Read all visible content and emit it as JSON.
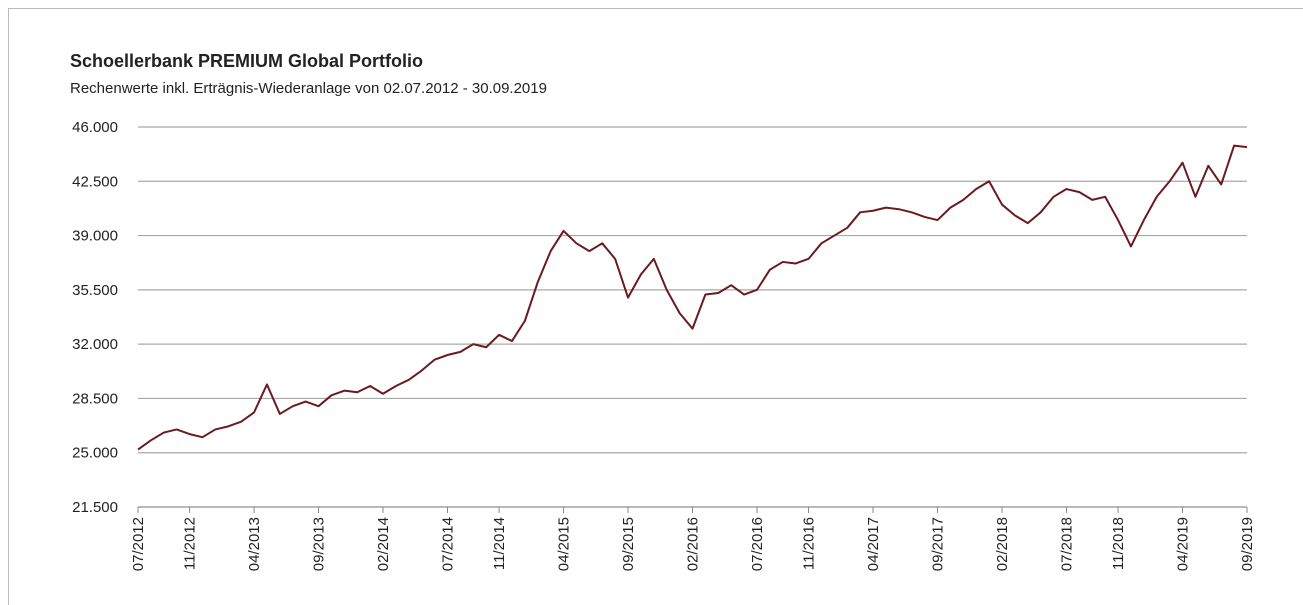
{
  "chart_data": {
    "type": "line",
    "title": "Schoellerbank PREMIUM Global Portfolio",
    "subtitle": "Rechenwerte inkl. Erträgnis-Wiederanlage von  02.07.2012 - 30.09.2019",
    "x": [
      "07/2012",
      "08/2012",
      "09/2012",
      "10/2012",
      "11/2012",
      "12/2012",
      "01/2013",
      "02/2013",
      "03/2013",
      "04/2013",
      "05/2013",
      "06/2013",
      "07/2013",
      "08/2013",
      "09/2013",
      "10/2013",
      "11/2013",
      "12/2013",
      "01/2014",
      "02/2014",
      "03/2014",
      "04/2014",
      "05/2014",
      "06/2014",
      "07/2014",
      "08/2014",
      "09/2014",
      "10/2014",
      "11/2014",
      "12/2014",
      "01/2015",
      "02/2015",
      "03/2015",
      "04/2015",
      "05/2015",
      "06/2015",
      "07/2015",
      "08/2015",
      "09/2015",
      "10/2015",
      "11/2015",
      "12/2015",
      "01/2016",
      "02/2016",
      "03/2016",
      "04/2016",
      "05/2016",
      "06/2016",
      "07/2016",
      "08/2016",
      "09/2016",
      "10/2016",
      "11/2016",
      "12/2016",
      "01/2017",
      "02/2017",
      "03/2017",
      "04/2017",
      "05/2017",
      "06/2017",
      "07/2017",
      "08/2017",
      "09/2017",
      "10/2017",
      "11/2017",
      "12/2017",
      "01/2018",
      "02/2018",
      "03/2018",
      "04/2018",
      "05/2018",
      "06/2018",
      "07/2018",
      "08/2018",
      "09/2018",
      "10/2018",
      "11/2018",
      "12/2018",
      "01/2019",
      "02/2019",
      "03/2019",
      "04/2019",
      "05/2019",
      "06/2019",
      "07/2019",
      "08/2019",
      "09/2019"
    ],
    "series": [
      {
        "name": "Schoellerbank PREMIUM Global Portfolio",
        "color": "#6b1a1f",
        "values": [
          25200,
          25800,
          26300,
          26500,
          26200,
          26000,
          26500,
          26700,
          27000,
          27600,
          29400,
          27500,
          28000,
          28300,
          28000,
          28700,
          29000,
          28900,
          29300,
          28800,
          29300,
          29700,
          30300,
          31000,
          31300,
          31500,
          32000,
          31800,
          32600,
          32200,
          33500,
          36000,
          38000,
          39300,
          38500,
          38000,
          38500,
          37500,
          35000,
          36500,
          37500,
          35500,
          34000,
          33000,
          35200,
          35300,
          35800,
          35200,
          35500,
          36800,
          37300,
          37200,
          37500,
          38500,
          39000,
          39500,
          40500,
          40600,
          40800,
          40700,
          40500,
          40200,
          40000,
          40800,
          41300,
          42000,
          42500,
          41000,
          40300,
          39800,
          40500,
          41500,
          42000,
          41800,
          41300,
          41500,
          40000,
          38300,
          40000,
          41500,
          42500,
          43700,
          41500,
          43500,
          42300,
          44800,
          44700
        ]
      }
    ],
    "ylim": [
      21500,
      46000
    ],
    "yticks": [
      {
        "value": 21500,
        "label": "21.500"
      },
      {
        "value": 25000,
        "label": "25.000"
      },
      {
        "value": 28500,
        "label": "28.500"
      },
      {
        "value": 32000,
        "label": "32.000"
      },
      {
        "value": 35500,
        "label": "35.500"
      },
      {
        "value": 39000,
        "label": "39.000"
      },
      {
        "value": 42500,
        "label": "42.500"
      },
      {
        "value": 46000,
        "label": "46.000"
      }
    ],
    "xticks": [
      "07/2012",
      "11/2012",
      "04/2013",
      "09/2013",
      "02/2014",
      "07/2014",
      "11/2014",
      "04/2015",
      "09/2015",
      "02/2016",
      "07/2016",
      "11/2016",
      "04/2017",
      "09/2017",
      "02/2018",
      "07/2018",
      "11/2018",
      "04/2019",
      "09/2019"
    ],
    "grid": true
  }
}
